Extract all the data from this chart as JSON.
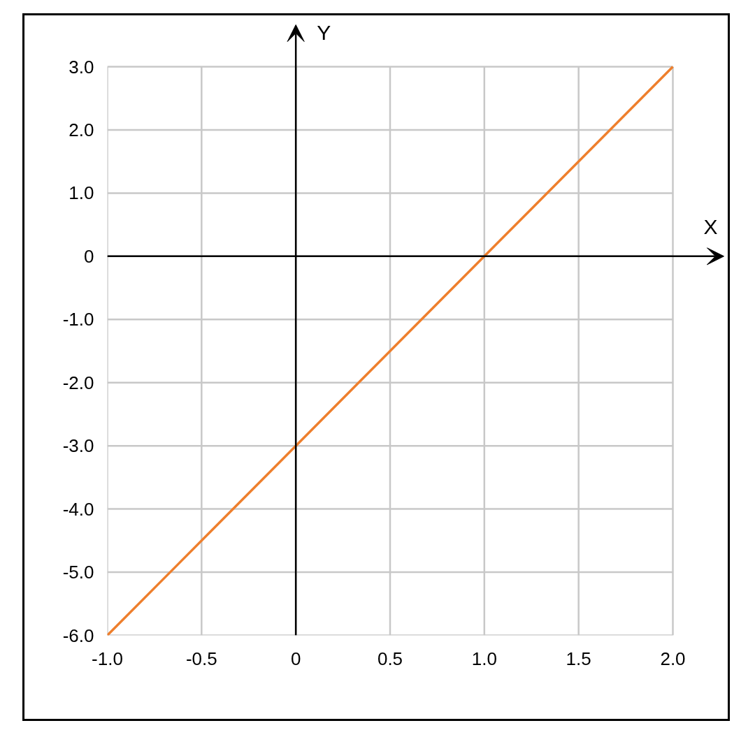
{
  "chart_data": {
    "type": "line",
    "xlabel": "X",
    "ylabel": "Y",
    "x": [
      -1,
      0,
      1,
      2
    ],
    "series": [
      {
        "color": "#ee7f2d",
        "values": [
          -6,
          -3,
          0,
          3
        ]
      }
    ],
    "xlim": [
      -1,
      2
    ],
    "ylim": [
      -6,
      3
    ],
    "xticks": [
      {
        "value": -1,
        "label": "-1.0"
      },
      -0.5,
      0,
      0.5,
      {
        "value": 1,
        "label": "1.0"
      },
      1.5,
      {
        "value": 2,
        "label": "2.0"
      }
    ],
    "yticks": [
      {
        "value": -6,
        "label": "-6.0"
      },
      {
        "value": -5,
        "label": "-5.0"
      },
      {
        "value": -4,
        "label": "-4.0"
      },
      {
        "value": -3,
        "label": "-3.0"
      },
      {
        "value": -2,
        "label": "-2.0"
      },
      {
        "value": -1,
        "label": "-1.0"
      },
      0,
      {
        "value": 1,
        "label": "1.0"
      },
      {
        "value": 2,
        "label": "2.0"
      },
      {
        "value": 3,
        "label": "3.0"
      }
    ],
    "grid": true,
    "line_style": "solid"
  }
}
